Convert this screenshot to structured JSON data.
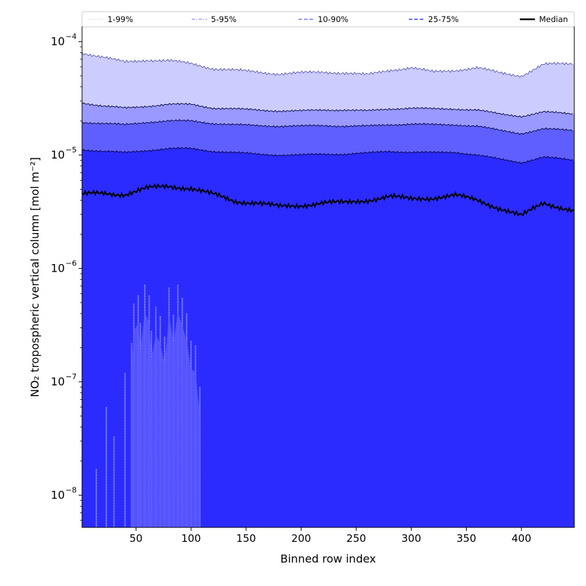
{
  "chart_data": {
    "type": "area",
    "title": "",
    "xlabel": "Binned row index",
    "ylabel": "NO₂ tropospheric vertical column [mol m⁻²]",
    "xscale": "linear",
    "yscale": "log",
    "xlim": [
      1,
      448
    ],
    "ylim": [
      5.2e-09,
      0.000135
    ],
    "x_ticks": [
      50,
      100,
      150,
      200,
      250,
      300,
      350,
      400
    ],
    "x_tick_labels": [
      "50",
      "100",
      "150",
      "200",
      "250",
      "300",
      "350",
      "400"
    ],
    "y_ticks": [
      1e-08,
      1e-07,
      1e-06,
      1e-05,
      0.0001
    ],
    "y_tick_labels": [
      {
        "base": "10",
        "exp": "−8"
      },
      {
        "base": "10",
        "exp": "−7"
      },
      {
        "base": "10",
        "exp": "−6"
      },
      {
        "base": "10",
        "exp": "−5"
      },
      {
        "base": "10",
        "exp": "−4"
      }
    ],
    "grid": false,
    "legend_position": "top (above plot, single row)",
    "colors": {
      "band_1_99": "#ccccff",
      "band_5_95": "#9999ff",
      "band_10_90": "#5f5fff",
      "band_25_75": "#2b2bff",
      "median": "#000000"
    },
    "x": [
      1,
      20,
      40,
      60,
      80,
      100,
      120,
      140,
      160,
      180,
      200,
      220,
      240,
      260,
      280,
      300,
      320,
      340,
      360,
      380,
      400,
      420,
      448
    ],
    "series": [
      {
        "name": "1-99%",
        "role": "upper",
        "values": [
          8e-05,
          7.3e-05,
          6.6e-05,
          6.9e-05,
          6.8e-05,
          6.4e-05,
          5.8e-05,
          5.6e-05,
          5.4e-05,
          5.2e-05,
          5.3e-05,
          5.4e-05,
          5.3e-05,
          5.1e-05,
          5.6e-05,
          5.9e-05,
          5.4e-05,
          5.6e-05,
          5.9e-05,
          5.3e-05,
          5e-05,
          6.3e-05,
          6.4e-05
        ]
      },
      {
        "name": "5-95%",
        "role": "upper",
        "values": [
          2.9e-05,
          2.7e-05,
          2.6e-05,
          2.7e-05,
          2.8e-05,
          2.8e-05,
          2.6e-05,
          2.55e-05,
          2.5e-05,
          2.45e-05,
          2.45e-05,
          2.5e-05,
          2.5e-05,
          2.45e-05,
          2.55e-05,
          2.6e-05,
          2.55e-05,
          2.55e-05,
          2.5e-05,
          2.3e-05,
          2.2e-05,
          2.4e-05,
          2.3e-05
        ]
      },
      {
        "name": "10-90%",
        "role": "upper",
        "values": [
          1.95e-05,
          1.9e-05,
          1.85e-05,
          1.95e-05,
          2e-05,
          2e-05,
          1.9e-05,
          1.85e-05,
          1.82e-05,
          1.8e-05,
          1.8e-05,
          1.82e-05,
          1.8e-05,
          1.8e-05,
          1.85e-05,
          1.88e-05,
          1.85e-05,
          1.85e-05,
          1.8e-05,
          1.65e-05,
          1.55e-05,
          1.7e-05,
          1.65e-05
        ]
      },
      {
        "name": "25-75%",
        "role": "upper",
        "values": [
          1.12e-05,
          1.08e-05,
          1.05e-05,
          1.1e-05,
          1.14e-05,
          1.14e-05,
          1.08e-05,
          1.05e-05,
          1.02e-05,
          1e-05,
          1e-05,
          1.02e-05,
          1.02e-05,
          1.04e-05,
          1.08e-05,
          1.06e-05,
          1.05e-05,
          1.06e-05,
          1e-05,
          9.2e-06,
          8.6e-06,
          9.6e-06,
          9e-06
        ]
      },
      {
        "name": "Median",
        "role": "line",
        "values": [
          4.5e-06,
          4.6e-06,
          4.5e-06,
          5.1e-06,
          5.3e-06,
          5.1e-06,
          4.5e-06,
          3.9e-06,
          3.8e-06,
          3.5e-06,
          3.6e-06,
          3.8e-06,
          3.8e-06,
          4e-06,
          4.3e-06,
          4.1e-06,
          4.2e-06,
          4.4e-06,
          4e-06,
          3.4e-06,
          2.9e-06,
          3.8e-06,
          3.2e-06
        ]
      }
    ],
    "lower_band_tails": [
      {
        "band": "25-75%",
        "x": [
          14,
          23,
          30,
          40,
          46,
          48,
          52,
          54,
          58,
          62,
          64,
          68,
          72,
          76,
          80,
          84,
          88,
          92,
          96,
          100,
          104,
          108
        ],
        "values": [
          1.7e-08,
          6e-08,
          3.3e-08,
          1.2e-07,
          2.2e-07,
          4.9e-07,
          5.8e-07,
          3.3e-07,
          7.2e-07,
          5.8e-07,
          2.8e-07,
          4.6e-07,
          3.8e-07,
          2.5e-07,
          6.8e-07,
          3.9e-07,
          7.2e-07,
          5.5e-07,
          4e-07,
          2.3e-07,
          2.1e-07,
          9e-08
        ]
      }
    ],
    "legend": [
      {
        "label": "1-99%",
        "style": "dotted",
        "color": "#d8d8ff"
      },
      {
        "label": "5-95%",
        "style": "dashdot",
        "color": "#a0a0ff"
      },
      {
        "label": "10-90%",
        "style": "dashed",
        "color": "#7070ff"
      },
      {
        "label": "25-75%",
        "style": "dashed",
        "color": "#3a3aff"
      },
      {
        "label": "Median",
        "style": "solid",
        "color": "#000000"
      }
    ]
  }
}
